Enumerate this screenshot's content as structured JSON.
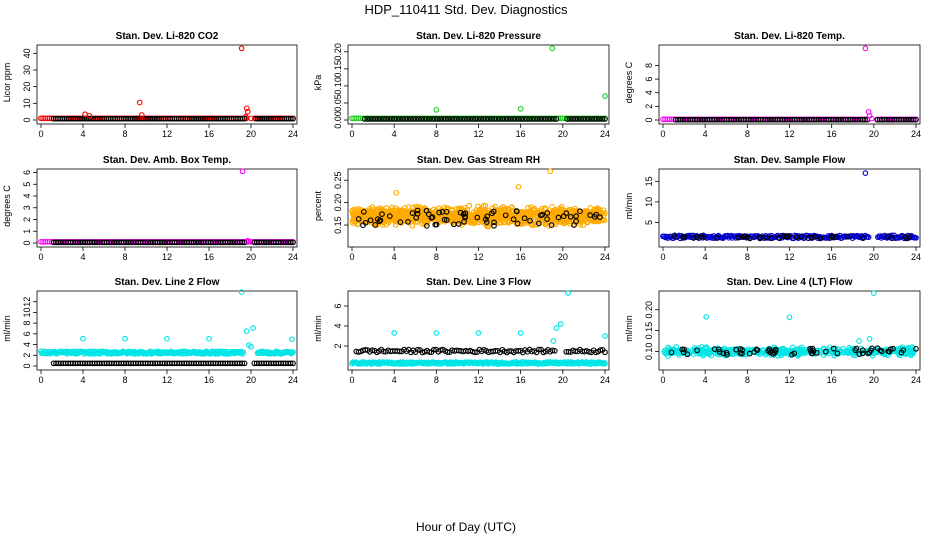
{
  "figure": {
    "title": "HDP_110411  Std. Dev. Diagnostics",
    "xlabel": "Hour of Day (UTC)"
  },
  "colors": {
    "red": "#ff0000",
    "green": "#22cc22",
    "magenta": "#ff00ff",
    "orange": "#ffaa00",
    "blue": "#0000cc",
    "cyan": "#00e5e5",
    "black": "#000000"
  },
  "chart_data": [
    {
      "type": "scatter",
      "title": "Stan. Dev. Li-820 CO2",
      "ylabel": "Licor ppm",
      "xlim": [
        0,
        24
      ],
      "xticks": [
        0,
        4,
        8,
        12,
        16,
        20,
        24
      ],
      "xtick_labels": [
        "0",
        "4",
        "8",
        "12",
        "16",
        "20",
        "24"
      ],
      "ylim": [
        0,
        45
      ],
      "yticks": [
        0,
        10,
        20,
        30,
        40
      ],
      "ytick_labels": [
        "0",
        "10",
        "20",
        "30",
        "40"
      ],
      "series": [
        {
          "name": "base",
          "color": "red",
          "pattern": "line",
          "x_start": 0,
          "x_end": 24,
          "y": 1.0,
          "n": 120,
          "gaps": [
            [
              19.6,
              20.3
            ]
          ]
        },
        {
          "name": "overlay",
          "color": "black",
          "pattern": "line",
          "x_start": 1.2,
          "x_end": 24,
          "y": 0.8,
          "n": 110,
          "gaps": [
            [
              19.4,
              20.3
            ]
          ]
        },
        {
          "name": "outliers",
          "color": "red",
          "x": [
            0,
            4.2,
            4.6,
            9.4,
            9.6,
            19.1,
            19.6,
            19.7,
            19.5,
            20.0
          ],
          "y": [
            1,
            3.5,
            2.5,
            10.5,
            3,
            43,
            7,
            5,
            2,
            1
          ]
        }
      ]
    },
    {
      "type": "scatter",
      "title": "Stan. Dev. Li-820 Pressure",
      "ylabel": "kPa",
      "xlim": [
        0,
        24
      ],
      "xticks": [
        0,
        4,
        8,
        12,
        16,
        20,
        24
      ],
      "xtick_labels": [
        "0",
        "4",
        "8",
        "12",
        "16",
        "20",
        "24"
      ],
      "ylim": [
        0,
        0.22
      ],
      "yticks": [
        0,
        0.05,
        0.1,
        0.15,
        0.2
      ],
      "ytick_labels": [
        "0.00",
        "0.05",
        "0.10",
        "0.15",
        "0.20"
      ],
      "series": [
        {
          "name": "base",
          "color": "green",
          "pattern": "line",
          "x_start": 0,
          "x_end": 24,
          "y": 0.005,
          "n": 120,
          "gaps": []
        },
        {
          "name": "overlay",
          "color": "black",
          "pattern": "line",
          "x_start": 1.2,
          "x_end": 24,
          "y": 0.003,
          "n": 90,
          "gaps": [
            [
              19.5,
              20.2
            ]
          ]
        },
        {
          "name": "outliers",
          "color": "green",
          "x": [
            8,
            16,
            19,
            24
          ],
          "y": [
            0.03,
            0.033,
            0.21,
            0.07
          ]
        }
      ]
    },
    {
      "type": "scatter",
      "title": "Stan. Dev. Li-820 Temp.",
      "ylabel": "degrees C",
      "xlim": [
        0,
        24
      ],
      "xticks": [
        0,
        4,
        8,
        12,
        16,
        20,
        24
      ],
      "xtick_labels": [
        "0",
        "4",
        "8",
        "12",
        "16",
        "20",
        "24"
      ],
      "ylim": [
        0,
        11
      ],
      "yticks": [
        0,
        2,
        4,
        6,
        8
      ],
      "ytick_labels": [
        "0",
        "2",
        "4",
        "6",
        "8"
      ],
      "series": [
        {
          "name": "base",
          "color": "magenta",
          "pattern": "line",
          "x_start": 0,
          "x_end": 24,
          "y": 0.1,
          "n": 120,
          "gaps": [
            [
              19.5,
              20.3
            ]
          ]
        },
        {
          "name": "overlay",
          "color": "black",
          "pattern": "line",
          "x_start": 1.2,
          "x_end": 24,
          "y": 0.05,
          "n": 100,
          "gaps": [
            [
              19.4,
              20.3
            ]
          ]
        },
        {
          "name": "outliers",
          "color": "magenta",
          "x": [
            19.2,
            19.5,
            19.6,
            19.8
          ],
          "y": [
            10.5,
            1.2,
            0.6,
            0.2
          ]
        }
      ]
    },
    {
      "type": "scatter",
      "title": "Stan. Dev. Amb. Box Temp.",
      "ylabel": "degrees C",
      "xlim": [
        0,
        24
      ],
      "xticks": [
        0,
        4,
        8,
        12,
        16,
        20,
        24
      ],
      "xtick_labels": [
        "0",
        "4",
        "8",
        "12",
        "16",
        "20",
        "24"
      ],
      "ylim": [
        0,
        6.3
      ],
      "yticks": [
        0,
        1,
        2,
        3,
        4,
        5,
        6
      ],
      "ytick_labels": [
        "0",
        "1",
        "2",
        "3",
        "4",
        "5",
        "6"
      ],
      "series": [
        {
          "name": "base",
          "color": "magenta",
          "pattern": "line",
          "x_start": 0,
          "x_end": 24,
          "y": 0.1,
          "n": 120,
          "gaps": []
        },
        {
          "name": "overlay",
          "color": "black",
          "pattern": "line",
          "x_start": 1.2,
          "x_end": 24,
          "y": 0.05,
          "n": 100,
          "gaps": [
            [
              19.4,
              20.3
            ]
          ]
        },
        {
          "name": "outliers",
          "color": "magenta",
          "x": [
            19.2,
            19.7
          ],
          "y": [
            6.1,
            0.2
          ]
        }
      ]
    },
    {
      "type": "scatter",
      "title": "Stan. Dev. Gas Stream RH",
      "ylabel": "percent",
      "xlim": [
        0,
        24
      ],
      "xticks": [
        0,
        4,
        8,
        12,
        16,
        20,
        24
      ],
      "xtick_labels": [
        "0",
        "4",
        "8",
        "12",
        "16",
        "20",
        "24"
      ],
      "ylim": [
        0.11,
        0.275
      ],
      "yticks": [
        0.15,
        0.2,
        0.25
      ],
      "ytick_labels": [
        "0.15",
        "0.20",
        "0.25"
      ],
      "series": [
        {
          "name": "base",
          "color": "orange",
          "pattern": "band",
          "x_start": 0,
          "x_end": 24,
          "y": 0.17,
          "spread": 0.027,
          "n": 1100,
          "gaps": []
        },
        {
          "name": "overlay",
          "color": "black",
          "pattern": "scatter",
          "x_start": 0.4,
          "x_end": 24,
          "y": 0.165,
          "spread": 0.018,
          "n": 70,
          "gaps": []
        },
        {
          "name": "outliers",
          "color": "orange",
          "x": [
            18.8,
            15.8,
            4.2
          ],
          "y": [
            0.27,
            0.235,
            0.222
          ]
        }
      ]
    },
    {
      "type": "scatter",
      "title": "Stan. Dev. Sample Flow",
      "ylabel": "ml/min",
      "xlim": [
        0,
        24
      ],
      "xticks": [
        0,
        4,
        8,
        12,
        16,
        20,
        24
      ],
      "xtick_labels": [
        "0",
        "4",
        "8",
        "12",
        "16",
        "20",
        "24"
      ],
      "ylim": [
        0,
        18
      ],
      "yticks": [
        5,
        10,
        15
      ],
      "ytick_labels": [
        "5",
        "10",
        "15"
      ],
      "series": [
        {
          "name": "base",
          "color": "blue",
          "pattern": "line",
          "x_start": 0,
          "x_end": 24,
          "y": 1.5,
          "spread": 0.35,
          "n": 220,
          "gaps": [
            [
              19.6,
              20.3
            ]
          ]
        },
        {
          "name": "overlay",
          "color": "black",
          "pattern": "scatter",
          "x_start": 1.0,
          "x_end": 24,
          "y": 1.4,
          "spread": 0.3,
          "n": 40,
          "gaps": [
            [
              19.5,
              20.3
            ]
          ]
        },
        {
          "name": "outliers",
          "color": "blue",
          "x": [
            19.2
          ],
          "y": [
            17
          ]
        }
      ]
    },
    {
      "type": "scatter",
      "title": "Stan. Dev. Line 2 Flow",
      "ylabel": "ml/min",
      "xlim": [
        0,
        24
      ],
      "xticks": [
        0,
        4,
        8,
        12,
        16,
        20,
        24
      ],
      "xtick_labels": [
        "0",
        "4",
        "8",
        "12",
        "16",
        "20",
        "24"
      ],
      "ylim": [
        0,
        14
      ],
      "yticks": [
        0,
        2,
        4,
        6,
        8,
        10,
        12
      ],
      "ytick_labels": [
        "0",
        "2",
        "4",
        "6",
        "8",
        "10",
        "12"
      ],
      "series": [
        {
          "name": "base",
          "color": "cyan",
          "pattern": "line",
          "x_start": 0,
          "x_end": 24,
          "y": 2.5,
          "spread": 0.25,
          "n": 300,
          "gaps": [
            [
              19.3,
              20.6
            ]
          ]
        },
        {
          "name": "overlay",
          "color": "black",
          "pattern": "line",
          "x_start": 1.2,
          "x_end": 24,
          "y": 0.5,
          "spread": 0.0,
          "n": 100,
          "gaps": [
            [
              19.4,
              20.3
            ]
          ]
        },
        {
          "name": "outliers",
          "color": "cyan",
          "x": [
            4,
            8,
            12,
            16,
            19.1,
            19.6,
            20.0,
            20.2,
            19.8,
            23.9,
            0
          ],
          "y": [
            5.1,
            5.1,
            5.1,
            5.1,
            13.8,
            6.5,
            3.6,
            7.1,
            3.9,
            5.0,
            2.7
          ]
        }
      ]
    },
    {
      "type": "scatter",
      "title": "Stan. Dev. Line 3 Flow",
      "ylabel": "ml/min",
      "xlim": [
        0,
        24
      ],
      "xticks": [
        0,
        4,
        8,
        12,
        16,
        20,
        24
      ],
      "xtick_labels": [
        "0",
        "4",
        "8",
        "12",
        "16",
        "20",
        "24"
      ],
      "ylim": [
        0,
        7.5
      ],
      "yticks": [
        2,
        4,
        6
      ],
      "ytick_labels": [
        "2",
        "4",
        "6"
      ],
      "series": [
        {
          "name": "base",
          "color": "cyan",
          "pattern": "line",
          "x_start": 0,
          "x_end": 24,
          "y": 0.3,
          "spread": 0.1,
          "n": 300,
          "gaps": []
        },
        {
          "name": "overlay",
          "color": "black",
          "pattern": "line",
          "x_start": 0.4,
          "x_end": 24,
          "y": 1.5,
          "spread": 0.15,
          "n": 110,
          "gaps": [
            [
              19.3,
              20.2
            ]
          ]
        },
        {
          "name": "outliers",
          "color": "cyan",
          "x": [
            4,
            8,
            12,
            16,
            19.1,
            19.4,
            19.8,
            20.5,
            24
          ],
          "y": [
            3.3,
            3.3,
            3.3,
            3.3,
            2.5,
            3.8,
            4.2,
            7.3,
            3.0
          ]
        }
      ]
    },
    {
      "type": "scatter",
      "title": "Stan. Dev. Line 4 (LT) Flow",
      "ylabel": "ml/min",
      "xlim": [
        0,
        24
      ],
      "xticks": [
        0,
        4,
        8,
        12,
        16,
        20,
        24
      ],
      "xtick_labels": [
        "0",
        "4",
        "8",
        "12",
        "16",
        "20",
        "24"
      ],
      "ylim": [
        0.065,
        0.245
      ],
      "yticks": [
        0.1,
        0.15,
        0.2
      ],
      "ytick_labels": [
        "0.10",
        "0.15",
        "0.20"
      ],
      "series": [
        {
          "name": "base",
          "color": "cyan",
          "pattern": "band",
          "x_start": 0,
          "x_end": 24,
          "y": 0.1,
          "spread": 0.013,
          "n": 420,
          "gaps": []
        },
        {
          "name": "overlay",
          "color": "black",
          "pattern": "scatter",
          "x_start": 0.5,
          "x_end": 24,
          "y": 0.1,
          "spread": 0.008,
          "n": 60,
          "gaps": []
        },
        {
          "name": "outliers",
          "color": "cyan",
          "x": [
            4.1,
            12.0,
            20.0,
            19.6,
            18.6
          ],
          "y": [
            0.183,
            0.182,
            0.24,
            0.13,
            0.125
          ]
        }
      ]
    }
  ]
}
